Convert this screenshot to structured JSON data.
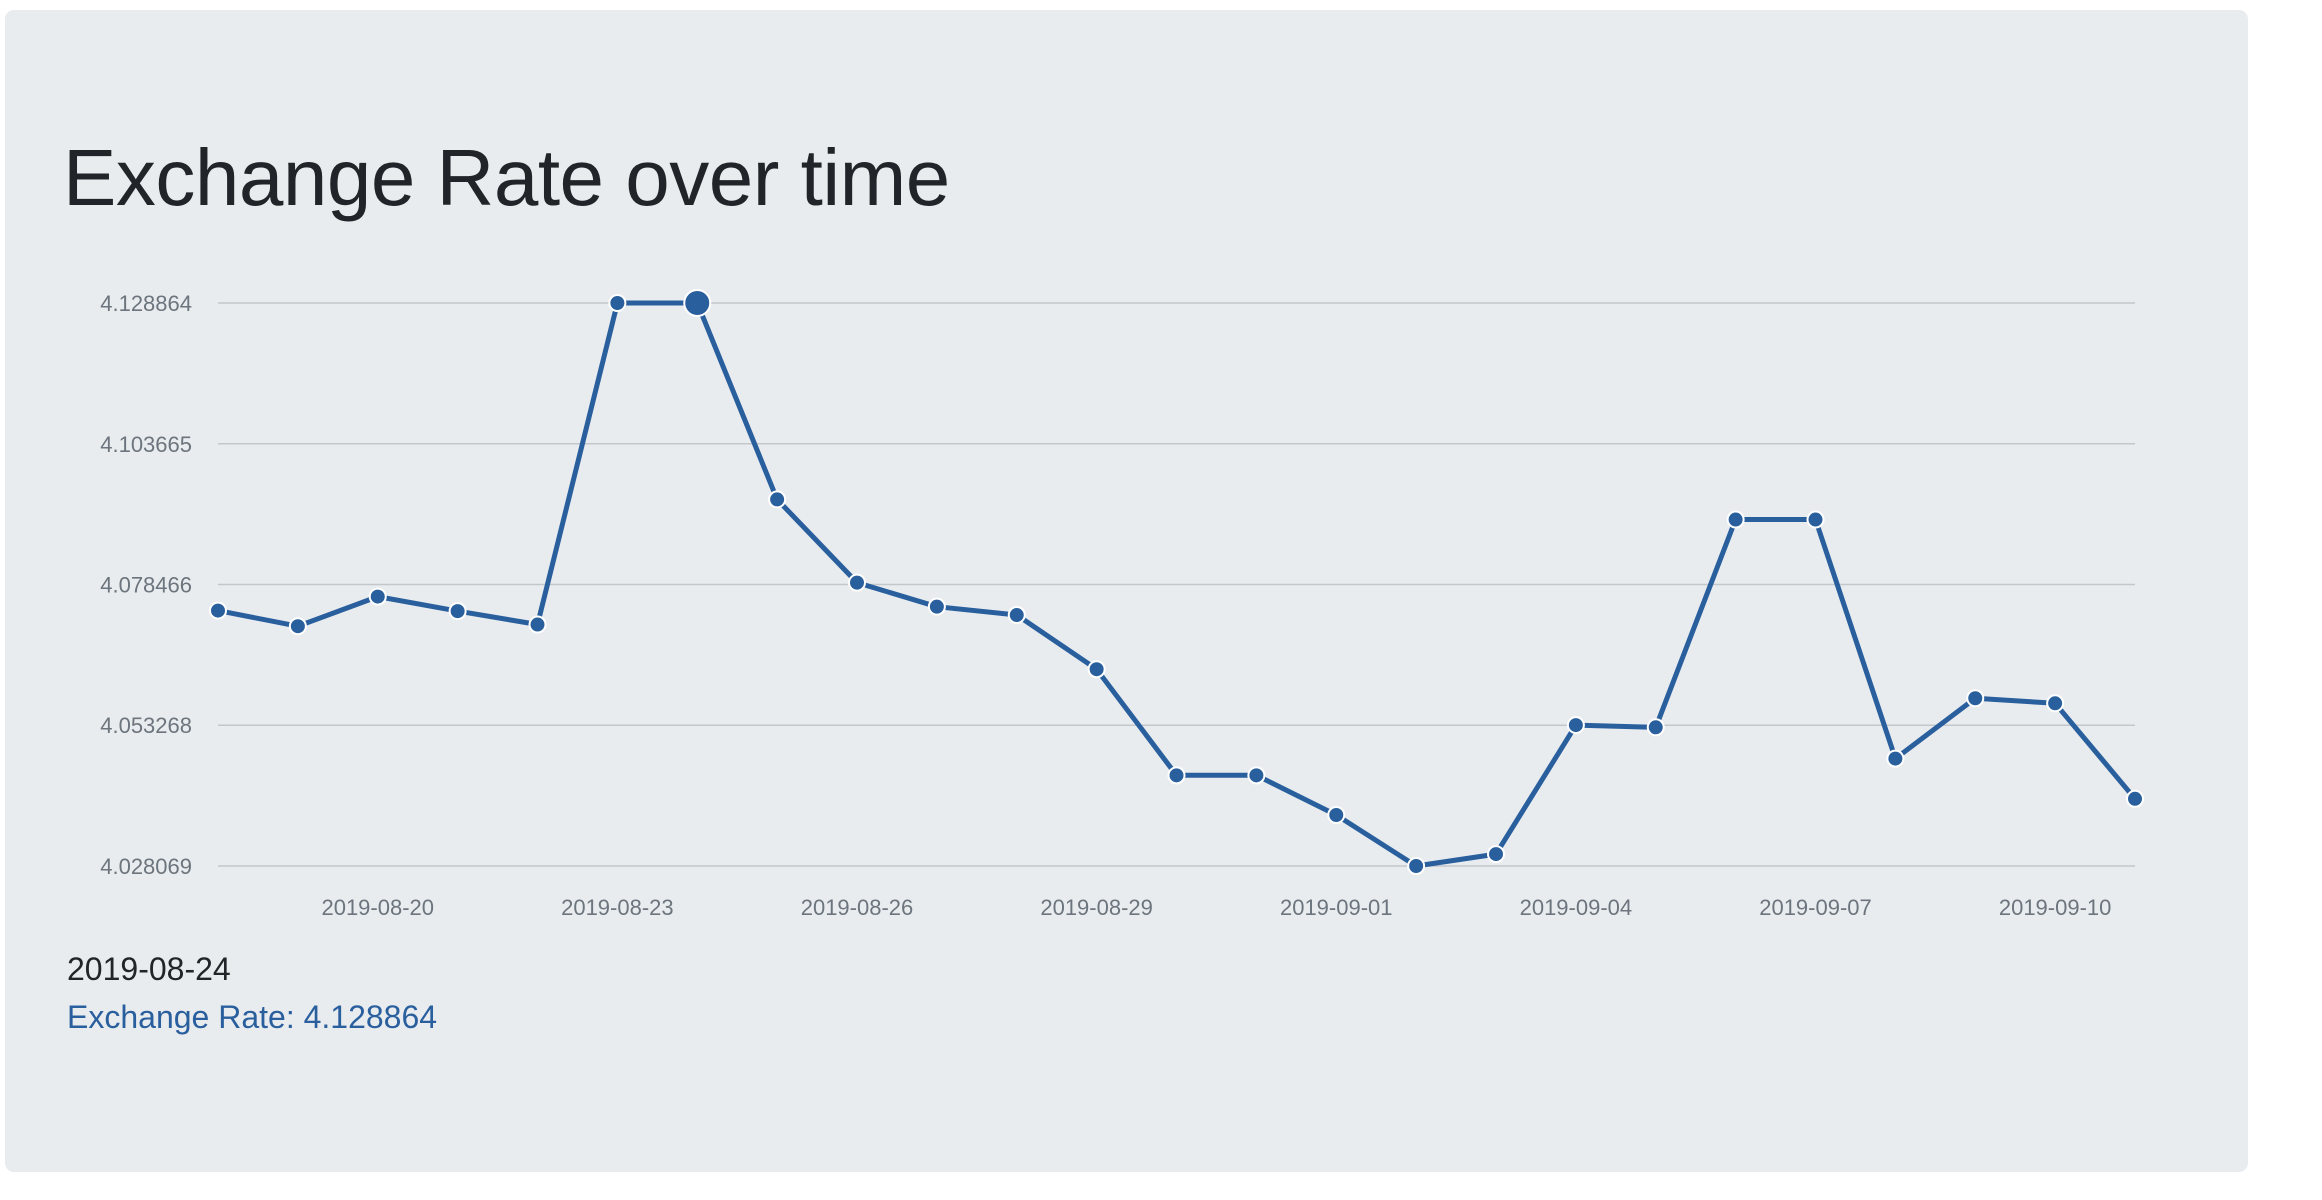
{
  "title": "Exchange Rate over time",
  "tooltip": {
    "date": "2019-08-24",
    "value_text": "Exchange Rate: 4.128864"
  },
  "colors": {
    "line": "#2a5f9e",
    "grid": "#c2c7cc",
    "card_bg": "#e9ecef"
  },
  "chart_data": {
    "type": "line",
    "title": "Exchange Rate over time",
    "xlabel": "",
    "ylabel": "",
    "grid": "horizontal",
    "y_ticks": [
      "4.128864",
      "4.103665",
      "4.078466",
      "4.053268",
      "4.028069"
    ],
    "ylim": [
      4.028069,
      4.128864
    ],
    "x_ticks": [
      "2019-08-20",
      "2019-08-23",
      "2019-08-26",
      "2019-08-29",
      "2019-09-01",
      "2019-09-04",
      "2019-09-07",
      "2019-09-10"
    ],
    "xlim": [
      "2019-08-18",
      "2019-09-11"
    ],
    "highlighted": {
      "x": "2019-08-24",
      "y": 4.128864
    },
    "series": [
      {
        "name": "Exchange Rate",
        "x": [
          "2019-08-18",
          "2019-08-19",
          "2019-08-20",
          "2019-08-21",
          "2019-08-22",
          "2019-08-23",
          "2019-08-24",
          "2019-08-25",
          "2019-08-26",
          "2019-08-27",
          "2019-08-28",
          "2019-08-29",
          "2019-08-30",
          "2019-08-31",
          "2019-09-01",
          "2019-09-02",
          "2019-09-03",
          "2019-09-04",
          "2019-09-05",
          "2019-09-06",
          "2019-09-07",
          "2019-09-08",
          "2019-09-09",
          "2019-09-10",
          "2019-09-11"
        ],
        "values": [
          4.0738,
          4.071,
          4.0763,
          4.0737,
          4.0713,
          4.128864,
          4.128864,
          4.0937,
          4.0788,
          4.0745,
          4.073,
          4.0633,
          4.0443,
          4.0443,
          4.0372,
          4.028069,
          4.0302,
          4.0533,
          4.0529,
          4.0901,
          4.0901,
          4.0473,
          4.0581,
          4.0572,
          4.0401
        ]
      }
    ]
  }
}
